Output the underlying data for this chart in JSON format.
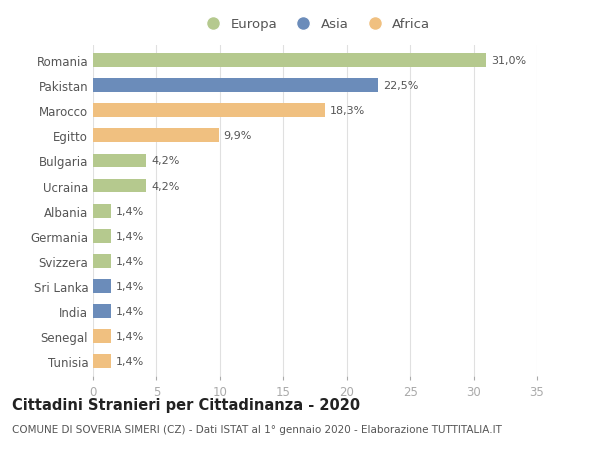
{
  "categories": [
    "Romania",
    "Pakistan",
    "Marocco",
    "Egitto",
    "Bulgaria",
    "Ucraina",
    "Albania",
    "Germania",
    "Svizzera",
    "Sri Lanka",
    "India",
    "Senegal",
    "Tunisia"
  ],
  "values": [
    31.0,
    22.5,
    18.3,
    9.9,
    4.2,
    4.2,
    1.4,
    1.4,
    1.4,
    1.4,
    1.4,
    1.4,
    1.4
  ],
  "colors": [
    "#b5c98e",
    "#6b8cba",
    "#f0c080",
    "#f0c080",
    "#b5c98e",
    "#b5c98e",
    "#b5c98e",
    "#b5c98e",
    "#b5c98e",
    "#6b8cba",
    "#6b8cba",
    "#f0c080",
    "#f0c080"
  ],
  "labels": [
    "31,0%",
    "22,5%",
    "18,3%",
    "9,9%",
    "4,2%",
    "4,2%",
    "1,4%",
    "1,4%",
    "1,4%",
    "1,4%",
    "1,4%",
    "1,4%",
    "1,4%"
  ],
  "xlim": [
    0,
    35
  ],
  "xticks": [
    0,
    5,
    10,
    15,
    20,
    25,
    30,
    35
  ],
  "legend_labels": [
    "Europa",
    "Asia",
    "Africa"
  ],
  "legend_colors": [
    "#b5c98e",
    "#6b8cba",
    "#f0c080"
  ],
  "title": "Cittadini Stranieri per Cittadinanza - 2020",
  "subtitle": "COMUNE DI SOVERIA SIMERI (CZ) - Dati ISTAT al 1° gennaio 2020 - Elaborazione TUTTITALIA.IT",
  "background_color": "#ffffff",
  "grid_color": "#e0e0e0",
  "bar_height": 0.55,
  "label_fontsize": 8.0,
  "tick_fontsize": 8.5,
  "title_fontsize": 10.5,
  "subtitle_fontsize": 7.5
}
